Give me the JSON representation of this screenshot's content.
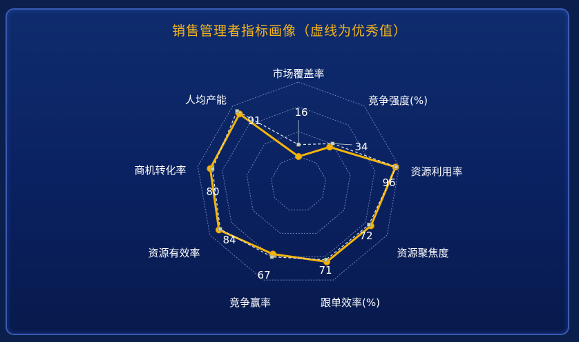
{
  "chart_data": {
    "type": "radar",
    "title": "销售管理者指标画像（虚线为优秀值）",
    "indicators": [
      "市场覆盖率",
      "竞争强度(%)",
      "资源利用率",
      "资源聚焦度",
      "跟单效率(%)",
      "竞争赢率",
      "资源有效率",
      "商机转化率",
      "人均产能"
    ],
    "max": 100,
    "grid": true,
    "series": [
      {
        "role": "actual",
        "color": "#f5b50a",
        "style": "solid",
        "values": [
          0,
          28,
          95,
          75,
          74,
          63,
          86,
          83,
          86
        ]
      },
      {
        "role": "benchmark",
        "color": "#e0e6f0",
        "style": "dashed",
        "values": [
          16,
          34,
          96,
          72,
          71,
          67,
          84,
          80,
          91
        ]
      }
    ],
    "data_labels": [
      "16",
      "34",
      "96",
      "72",
      "71",
      "67",
      "84",
      "80",
      "91"
    ]
  }
}
